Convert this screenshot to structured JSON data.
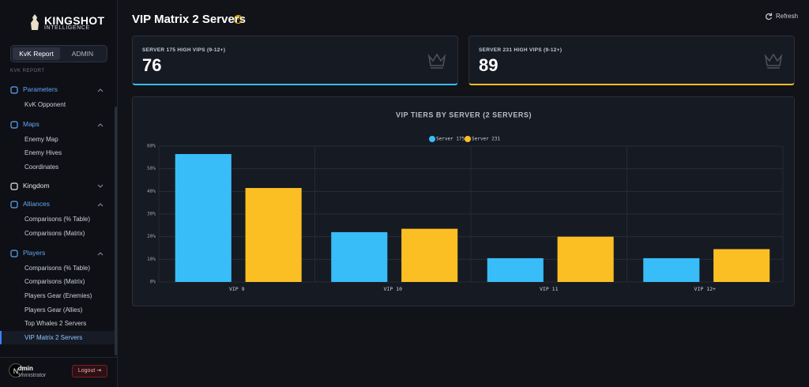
{
  "sidebar": {
    "logo_title": "KINGSHOT",
    "logo_subtitle": "INTELLIGENCE",
    "tabs": [
      "KvK Report",
      "ADMIN"
    ],
    "section": "KVK REPORT",
    "nav": [
      {
        "label": "Parameters",
        "items": [
          "KvK Opponent"
        ]
      },
      {
        "label": "Maps",
        "items": [
          "Enemy Map",
          "Enemy Hives",
          "Coordinates"
        ]
      },
      {
        "label": "Kingdom",
        "items": []
      },
      {
        "label": "Alliances",
        "items": [
          "Comparisons (% Table)",
          "Comparisons (Matrix)"
        ]
      },
      {
        "label": "Players",
        "items": [
          "Comparisons (% Table)",
          "Comparisons (Matrix)",
          "Players Gear (Enemies)",
          "Players Gear (Allies)",
          "Top Whales 2 Servers",
          "VIP Matrix 2 Servers"
        ]
      }
    ],
    "user": {
      "avatar": "N",
      "name": "Admin",
      "role": "Administrator"
    },
    "logout": "Logout"
  },
  "header": {
    "title": "VIP Matrix 2 Servers",
    "refresh": "Refresh"
  },
  "cards": [
    {
      "label": "SERVER 175 HIGH VIPS (9-12+)",
      "value": 76
    },
    {
      "label": "SERVER 231 HIGH VIPS (9-12+)",
      "value": 89
    }
  ],
  "chart_data": {
    "type": "bar",
    "title": "VIP TIERS BY SERVER (2 SERVERS)",
    "categories": [
      "VIP 9",
      "VIP 10",
      "VIP 11",
      "VIP 12+"
    ],
    "series": [
      {
        "name": "Server 175",
        "color": "#38bdf8",
        "values": [
          56.5,
          22,
          10.5,
          10.5
        ]
      },
      {
        "name": "Server 231",
        "color": "#fbbf24",
        "values": [
          41.5,
          23.5,
          20,
          14.5
        ]
      }
    ],
    "ylim": [
      0,
      60
    ],
    "yticks": [
      {
        "value": 0,
        "label": "0%"
      },
      {
        "value": 10,
        "label": "10%"
      },
      {
        "value": 20,
        "label": "20%"
      },
      {
        "value": 30,
        "label": "30%"
      },
      {
        "value": 40,
        "label": "40%"
      },
      {
        "value": 50,
        "label": "50%"
      },
      {
        "value": 60,
        "label": "60%"
      }
    ],
    "grid": true,
    "legend": "top"
  }
}
